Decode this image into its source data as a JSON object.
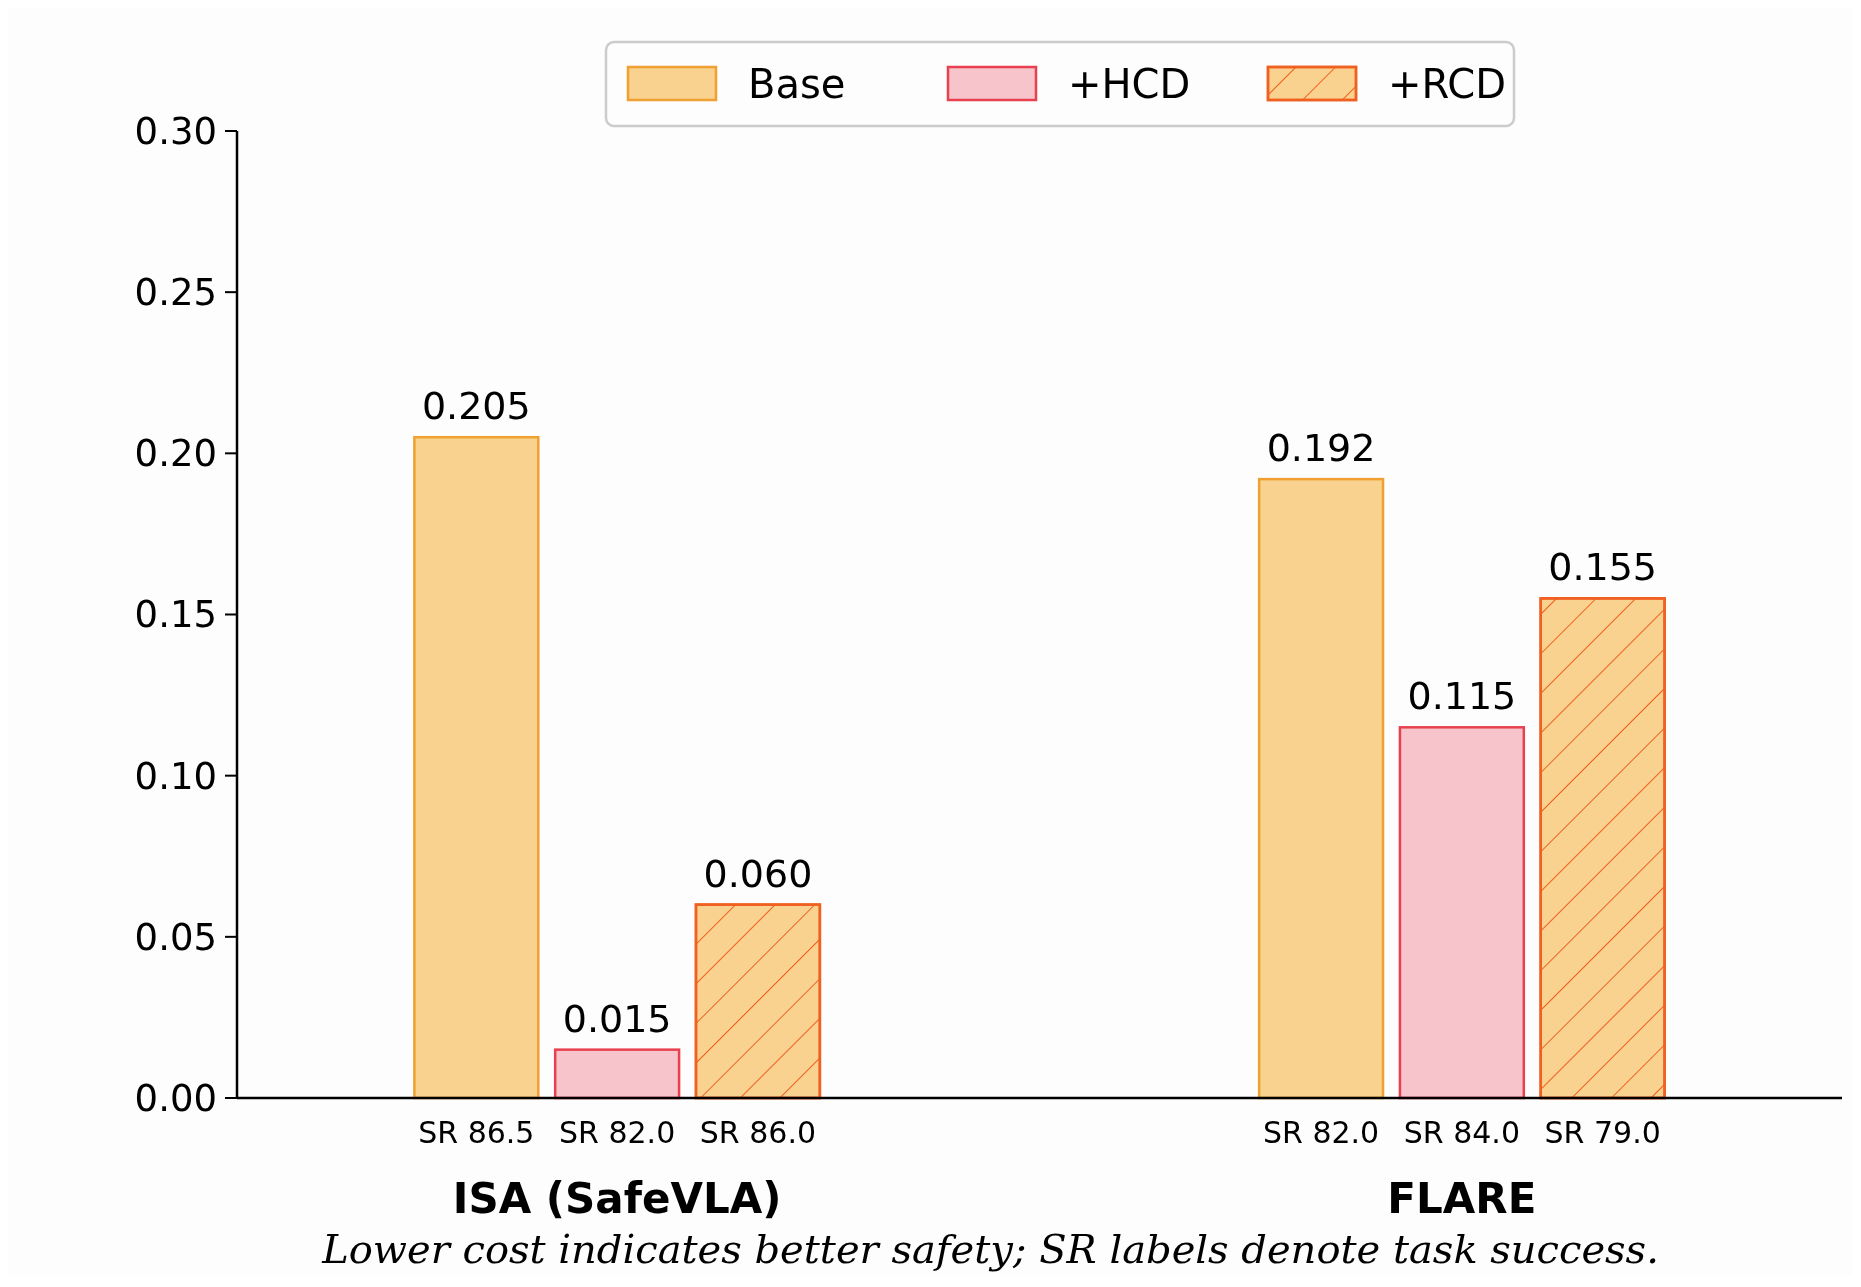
{
  "chart_data": {
    "type": "bar",
    "categories": [
      "ISA (SafeVLA)",
      "FLARE"
    ],
    "series": [
      {
        "name": "Base",
        "color": "#f8d28e",
        "values": [
          0.205,
          0.192
        ]
      },
      {
        "name": "+HCD",
        "color": "#f6c4ca",
        "values": [
          0.015,
          0.115
        ]
      },
      {
        "name": "+RCD",
        "color": "#f8d28e",
        "values": [
          0.06,
          0.155
        ]
      }
    ],
    "ylim": [
      0,
      0.3
    ],
    "yticks": [
      {
        "value": 0,
        "label": "0.00"
      },
      {
        "value": 0.05,
        "label": "0.05"
      },
      {
        "value": 0.1,
        "label": "0.10"
      },
      {
        "value": 0.15,
        "label": "0.15"
      },
      {
        "value": 0.2,
        "label": "0.20"
      },
      {
        "value": 0.25,
        "label": "0.25"
      },
      {
        "value": 0.3,
        "label": "0.30"
      }
    ],
    "value_labels": [
      [
        "0.205",
        "0.192"
      ],
      [
        "0.015",
        "0.115"
      ],
      [
        "0.060",
        "0.155"
      ]
    ],
    "grid": false,
    "legend": "top",
    "annotations": [
      "SR 86.5",
      "SR 82.0",
      "SR 86.0",
      "SR 82.0",
      "SR 84.0",
      "SR 79.0",
      "Lower cost indicates better safety; SR labels denote task success."
    ]
  }
}
